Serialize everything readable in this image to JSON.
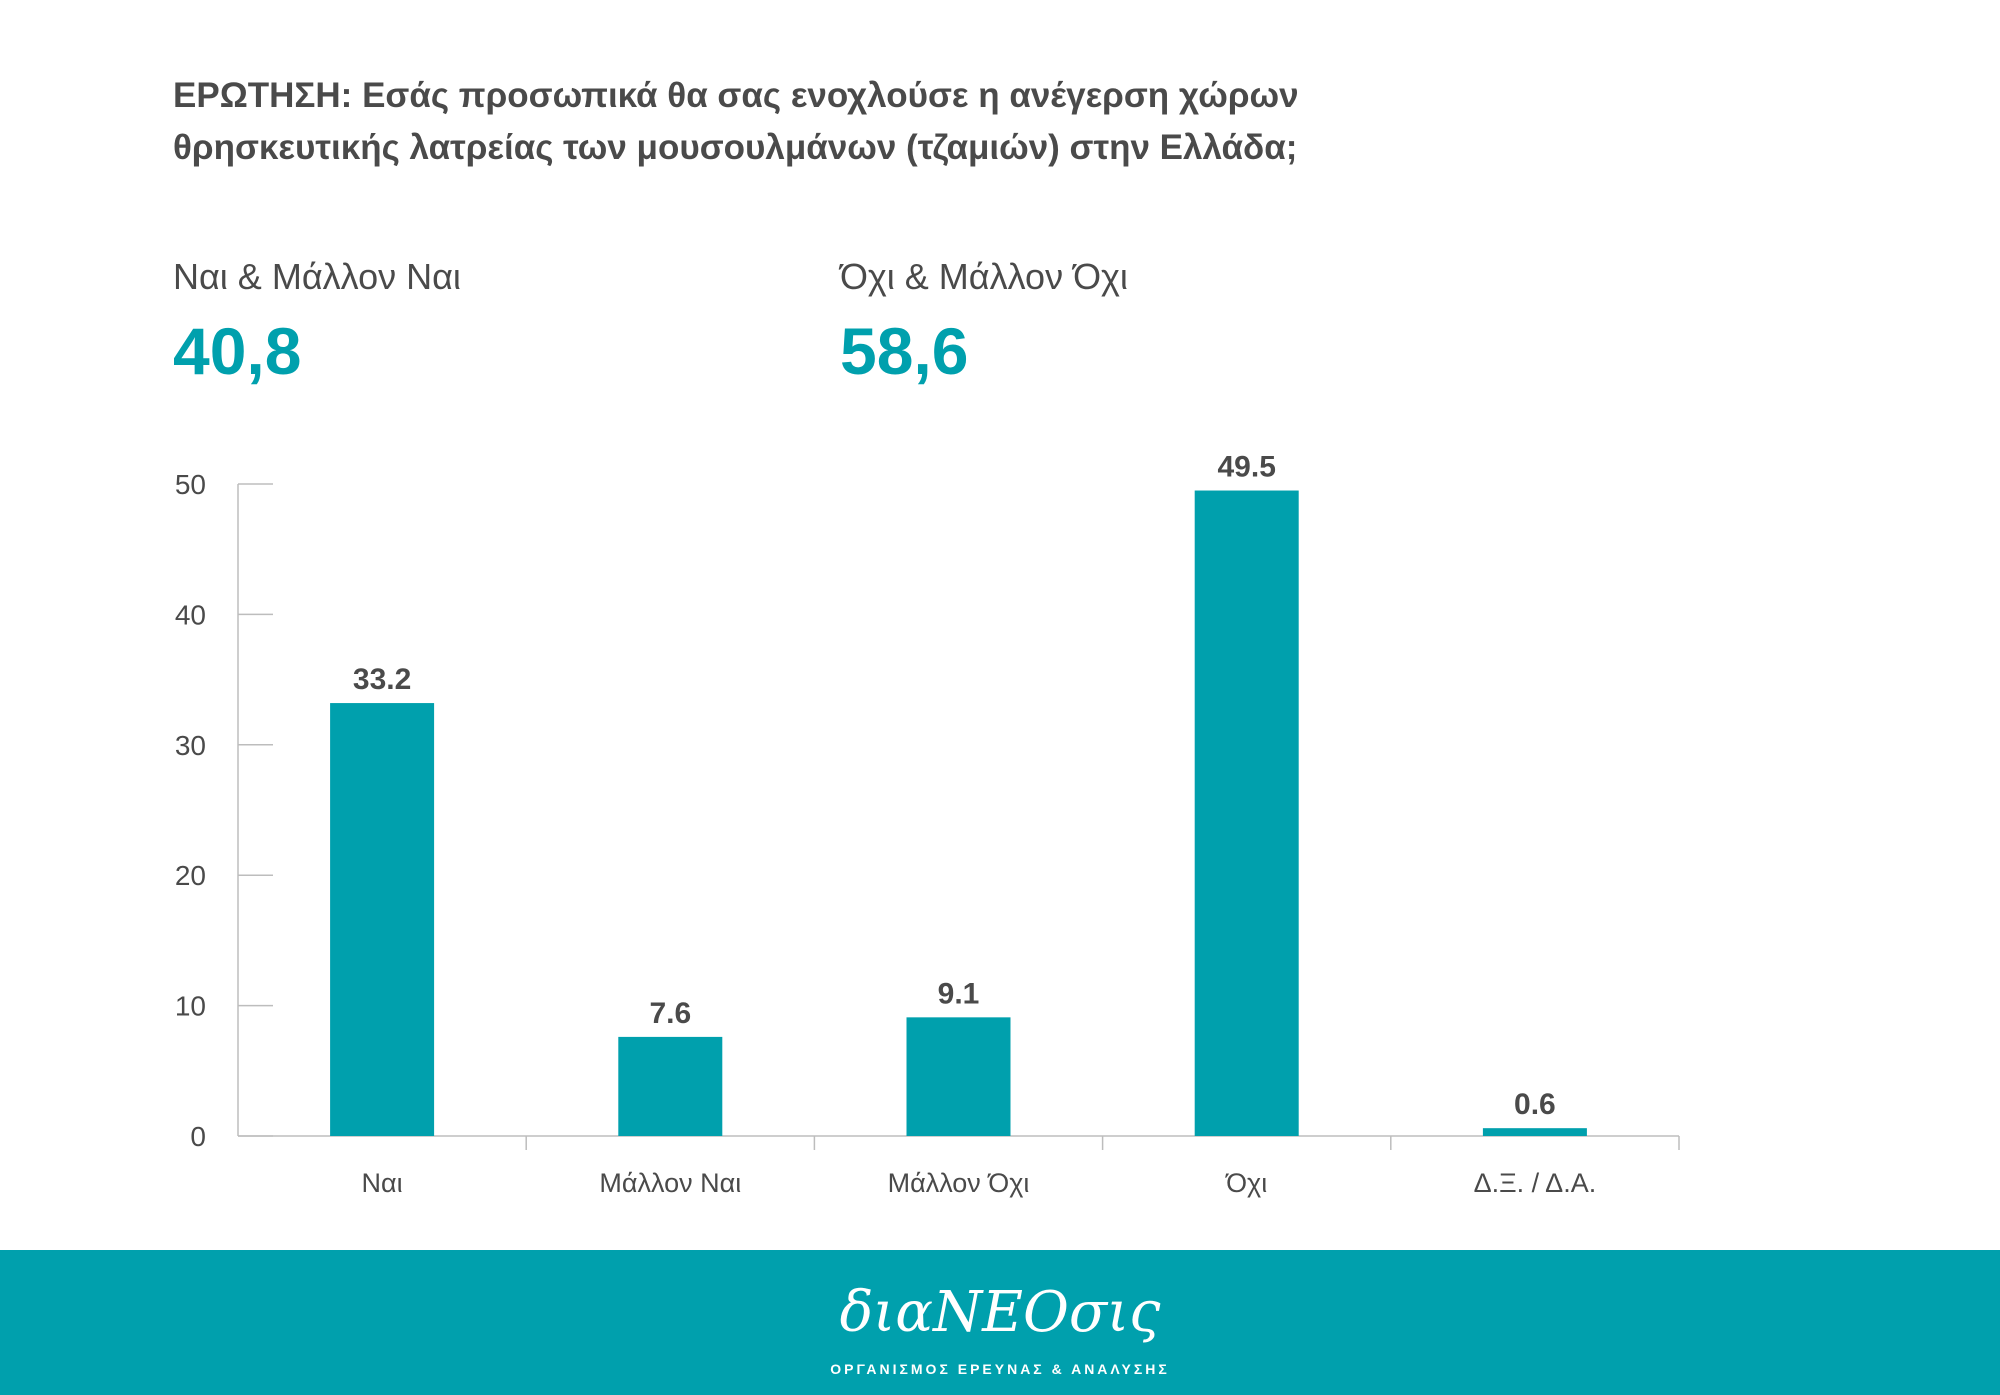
{
  "question": {
    "line1": "ΕΡΩΤΗΣΗ: Εσάς προσωπικά θα σας ενοχλούσε η ανέγερση χώρων",
    "line2": "θρησκευτικής λατρείας των μουσουλμάνων (τζαμιών) στην Ελλάδα;"
  },
  "summary": {
    "left": {
      "label": "Ναι & Μάλλον Ναι",
      "value": "40,8"
    },
    "right": {
      "label": "Όχι & Μάλλον Όχι",
      "value": "58,6"
    }
  },
  "chart_data": {
    "type": "bar",
    "categories": [
      "Ναι",
      "Μάλλον Ναι",
      "Μάλλον Όχι",
      "Όχι",
      "Δ.Ξ. / Δ.Α."
    ],
    "values": [
      33.2,
      7.6,
      9.1,
      49.5,
      0.6
    ],
    "value_labels": [
      "33.2",
      "7.6",
      "9.1",
      "49.5",
      "0.6"
    ],
    "ylim": [
      0,
      50
    ],
    "yticks": [
      0,
      10,
      20,
      30,
      40,
      50
    ],
    "grid": false,
    "colors": {
      "bar": "#00a0ad",
      "axis": "#bdbdbd",
      "text": "#4a4a4a"
    }
  },
  "footer": {
    "logo": "διαΝΕΟσις",
    "subtitle": "ΟΡΓΑΝΙΣΜΟΣ ΕΡΕΥΝΑΣ & ΑΝΑΛΥΣΗΣ",
    "color": "#00a0ad"
  }
}
